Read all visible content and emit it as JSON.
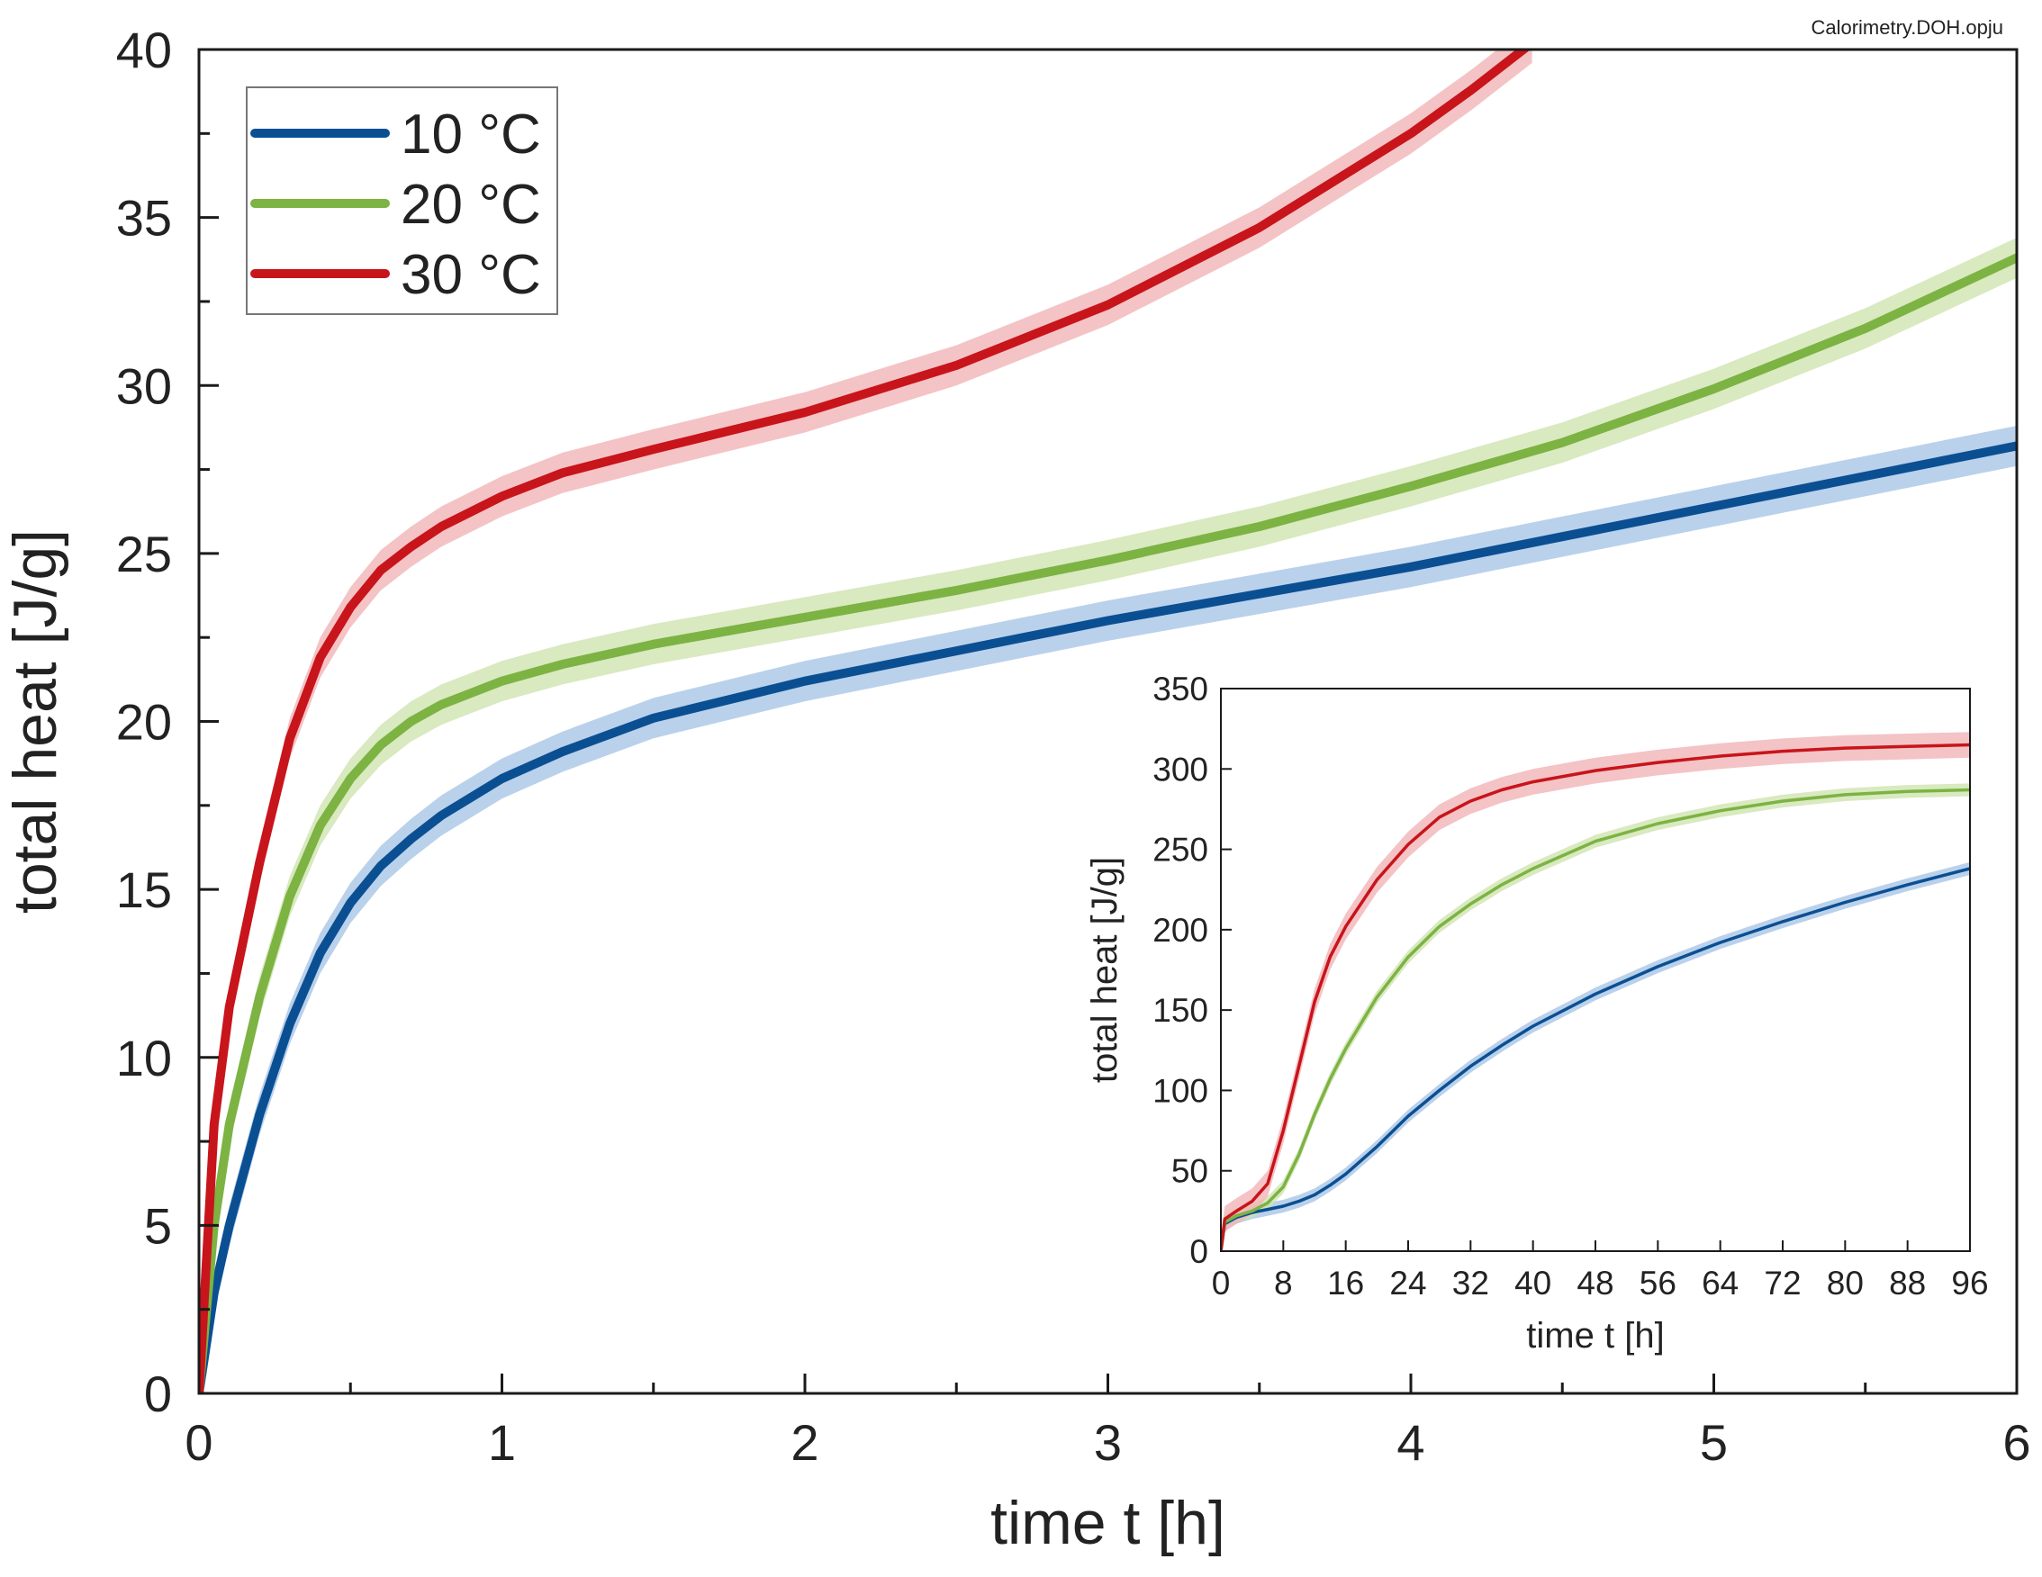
{
  "source_note": "Calorimetry.DOH.opju",
  "colors": {
    "s10": "#0b4f93",
    "s20": "#7cb342",
    "s30": "#c8141b",
    "band10": "#a9c6e6",
    "band20": "#cfe4b0",
    "band30": "#f1b4b7"
  },
  "chart_data": [
    {
      "id": "main",
      "type": "line",
      "title": "",
      "xlabel": "time t [h]",
      "ylabel": "total heat [J/g]",
      "xlim": [
        0,
        6
      ],
      "ylim": [
        0,
        40
      ],
      "xticks": [
        0,
        1,
        2,
        3,
        4,
        5,
        6
      ],
      "yticks": [
        0,
        5,
        10,
        15,
        20,
        25,
        30,
        35,
        40
      ],
      "x_minor_step": 0.5,
      "y_minor_step": 2.5,
      "legend_position": "top-left",
      "series": [
        {
          "name": "10 °C",
          "color_key": "s10",
          "band_key": "band10",
          "band_halfwidth": 0.6,
          "x": [
            0,
            0.05,
            0.1,
            0.2,
            0.3,
            0.4,
            0.5,
            0.6,
            0.7,
            0.8,
            1,
            1.2,
            1.5,
            2,
            2.5,
            3,
            3.5,
            4,
            4.5,
            5,
            5.5,
            6
          ],
          "y": [
            0,
            3,
            5,
            8.3,
            11,
            13.1,
            14.6,
            15.7,
            16.5,
            17.2,
            18.3,
            19.1,
            20.1,
            21.2,
            22.1,
            23,
            23.8,
            24.6,
            25.5,
            26.4,
            27.3,
            28.2
          ]
        },
        {
          "name": "20 °C",
          "color_key": "s20",
          "band_key": "band20",
          "band_halfwidth": 0.6,
          "x": [
            0,
            0.05,
            0.1,
            0.2,
            0.3,
            0.4,
            0.5,
            0.6,
            0.7,
            0.8,
            1,
            1.2,
            1.5,
            2,
            2.5,
            3,
            3.5,
            4,
            4.5,
            5,
            5.5,
            6
          ],
          "y": [
            0,
            5,
            8,
            11.8,
            14.8,
            16.9,
            18.3,
            19.3,
            20,
            20.5,
            21.2,
            21.7,
            22.3,
            23.1,
            23.9,
            24.8,
            25.8,
            27,
            28.3,
            29.9,
            31.7,
            33.8
          ]
        },
        {
          "name": "30 °C",
          "color_key": "s30",
          "band_key": "band30",
          "band_halfwidth": 0.6,
          "x": [
            0,
            0.05,
            0.1,
            0.2,
            0.3,
            0.4,
            0.5,
            0.6,
            0.7,
            0.8,
            1,
            1.2,
            1.5,
            2,
            2.5,
            3,
            3.5,
            4,
            4.2,
            4.4
          ],
          "y": [
            0,
            8,
            11.5,
            15.8,
            19.5,
            21.9,
            23.4,
            24.5,
            25.2,
            25.8,
            26.7,
            27.4,
            28.1,
            29.2,
            30.6,
            32.4,
            34.7,
            37.5,
            38.8,
            40.2
          ]
        }
      ]
    },
    {
      "id": "inset",
      "type": "line",
      "title": "",
      "xlabel": "time t [h]",
      "ylabel": "total heat [J/g]",
      "xlim": [
        0,
        96
      ],
      "ylim": [
        0,
        350
      ],
      "xticks": [
        0,
        8,
        16,
        24,
        32,
        40,
        48,
        56,
        64,
        72,
        80,
        88,
        96
      ],
      "yticks": [
        0,
        50,
        100,
        150,
        200,
        250,
        300,
        350
      ],
      "series": [
        {
          "name": "10 °C",
          "color_key": "s10",
          "band_key": "band10",
          "band_halfwidth": 4,
          "x": [
            0,
            0.5,
            2,
            4,
            6,
            8,
            10,
            12,
            14,
            16,
            20,
            24,
            28,
            32,
            36,
            40,
            48,
            56,
            64,
            72,
            80,
            88,
            96
          ],
          "y": [
            0,
            17,
            21,
            24,
            26,
            28,
            31,
            35,
            41,
            48,
            65,
            84,
            100,
            115,
            128,
            140,
            160,
            177,
            192,
            205,
            217,
            228,
            238
          ]
        },
        {
          "name": "20 °C",
          "color_key": "s20",
          "band_key": "band20",
          "band_halfwidth": 4,
          "x": [
            0,
            0.5,
            2,
            4,
            6,
            8,
            10,
            12,
            14,
            16,
            20,
            24,
            28,
            32,
            36,
            40,
            48,
            56,
            64,
            72,
            80,
            88,
            96
          ],
          "y": [
            0,
            18,
            22,
            25,
            30,
            40,
            60,
            85,
            107,
            126,
            158,
            183,
            202,
            216,
            228,
            238,
            255,
            266,
            274,
            280,
            284,
            286,
            287
          ]
        },
        {
          "name": "30 °C",
          "color_key": "s30",
          "band_key": "band30",
          "band_halfwidth": 8,
          "x": [
            0,
            0.5,
            2,
            4,
            6,
            8,
            10,
            12,
            14,
            16,
            20,
            24,
            28,
            32,
            36,
            40,
            48,
            56,
            64,
            72,
            80,
            88,
            96
          ],
          "y": [
            0,
            20,
            25,
            31,
            42,
            75,
            115,
            155,
            183,
            202,
            231,
            253,
            270,
            280,
            287,
            292,
            299,
            304,
            308,
            311,
            313,
            314,
            315
          ]
        }
      ]
    }
  ]
}
